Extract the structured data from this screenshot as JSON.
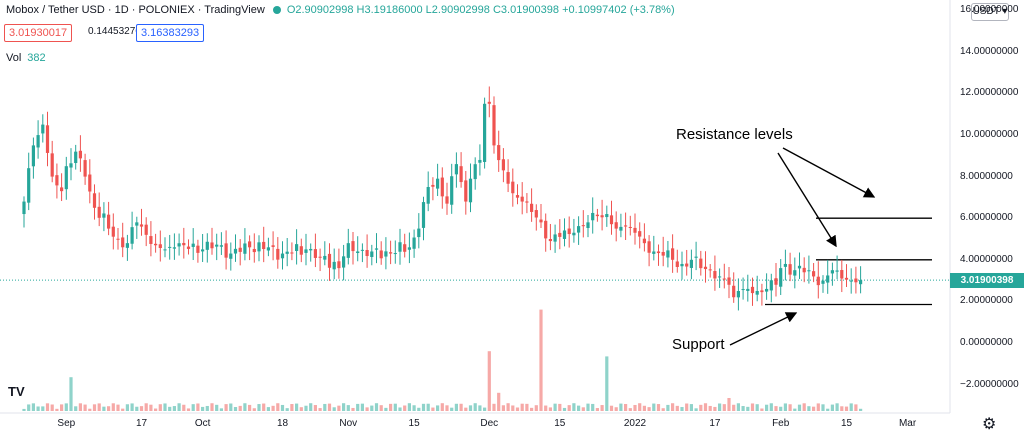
{
  "header": {
    "symbol": "Mobox / Tether USD · 1D · POLONIEX · TradingView",
    "ohlc_o": "O2.90902998",
    "ohlc_h": "H3.19186000",
    "ohlc_l": "L2.90902998",
    "ohlc_c": "C3.01900398",
    "ohlc_chg": "+0.10997402 (+3.78%)"
  },
  "price_boxes": {
    "bid": "3.01930017",
    "spread": "0.14453276",
    "ask": "3.16383293"
  },
  "volume": {
    "label": "Vol",
    "value": "382"
  },
  "currency": "USDT ▾",
  "last_price": "3.01900398",
  "colors": {
    "up": "#26a69a",
    "down": "#ef5350",
    "up_vol": "#8fd3ca",
    "down_vol": "#f6a9a7"
  },
  "annotations": {
    "resistance": "Resistance levels",
    "support": "Support"
  },
  "tv_logo": "TV",
  "settings_icon": "gear-icon",
  "chart_data": {
    "type": "candlestick",
    "ylim": [
      -3.2,
      16
    ],
    "y_ticks": [
      {
        "value": 16,
        "label": "16.00000000"
      },
      {
        "value": 14,
        "label": "14.00000000"
      },
      {
        "value": 12,
        "label": "12.00000000"
      },
      {
        "value": 10,
        "label": "10.00000000"
      },
      {
        "value": 8,
        "label": "8.00000000"
      },
      {
        "value": 6,
        "label": "6.00000000"
      },
      {
        "value": 4,
        "label": "4.00000000"
      },
      {
        "value": 2,
        "label": "2.00000000"
      },
      {
        "value": 0,
        "label": "0.00000000"
      },
      {
        "value": -2,
        "label": "−2.00000000"
      }
    ],
    "x_ticks": [
      {
        "day": 9,
        "label": "Sep"
      },
      {
        "day": 25,
        "label": "17"
      },
      {
        "day": 38,
        "label": "Oct"
      },
      {
        "day": 55,
        "label": "18"
      },
      {
        "day": 69,
        "label": "Nov"
      },
      {
        "day": 83,
        "label": "15"
      },
      {
        "day": 99,
        "label": "Dec"
      },
      {
        "day": 114,
        "label": "15"
      },
      {
        "day": 130,
        "label": "2022"
      },
      {
        "day": 147,
        "label": "17"
      },
      {
        "day": 161,
        "label": "Feb"
      },
      {
        "day": 175,
        "label": "15"
      },
      {
        "day": 188,
        "label": "Mar"
      }
    ],
    "levels": {
      "resistance": [
        6.0,
        4.0
      ],
      "support": [
        1.85
      ]
    },
    "close_anchors": [
      [
        0,
        6.8
      ],
      [
        2,
        9.5
      ],
      [
        4,
        10.5
      ],
      [
        6,
        8
      ],
      [
        8,
        7.3
      ],
      [
        9,
        8.5
      ],
      [
        11,
        9.2
      ],
      [
        13,
        8
      ],
      [
        15,
        6.5
      ],
      [
        18,
        5.5
      ],
      [
        20,
        5.0
      ],
      [
        22,
        4.8
      ],
      [
        24,
        5.8
      ],
      [
        26,
        5.2
      ],
      [
        28,
        4.7
      ],
      [
        30,
        4.5
      ],
      [
        32,
        4.6
      ],
      [
        34,
        4.7
      ],
      [
        38,
        4.5
      ],
      [
        42,
        4.7
      ],
      [
        44,
        4.3
      ],
      [
        48,
        4.6
      ],
      [
        52,
        4.6
      ],
      [
        55,
        4.3
      ],
      [
        60,
        4.5
      ],
      [
        63,
        4.1
      ],
      [
        66,
        3.9
      ],
      [
        67,
        3.6
      ],
      [
        69,
        4.8
      ],
      [
        71,
        4.4
      ],
      [
        74,
        4.4
      ],
      [
        78,
        4.3
      ],
      [
        82,
        4.6
      ],
      [
        84,
        5.5
      ],
      [
        86,
        7.5
      ],
      [
        88,
        7.9
      ],
      [
        90,
        6.7
      ],
      [
        92,
        8.6
      ],
      [
        94,
        6.8
      ],
      [
        95,
        7.9
      ],
      [
        97,
        8.8
      ],
      [
        98,
        11.5
      ],
      [
        99,
        11.5
      ],
      [
        100,
        9.5
      ],
      [
        102,
        8.3
      ],
      [
        104,
        7.2
      ],
      [
        106,
        6.8
      ],
      [
        108,
        6.3
      ],
      [
        110,
        5.8
      ],
      [
        112,
        4.9
      ],
      [
        114,
        5.1
      ],
      [
        117,
        5.3
      ],
      [
        120,
        5.8
      ],
      [
        122,
        6.1
      ],
      [
        124,
        6.2
      ],
      [
        126,
        5.5
      ],
      [
        128,
        5.6
      ],
      [
        130,
        5.3
      ],
      [
        132,
        4.8
      ],
      [
        134,
        4.4
      ],
      [
        136,
        4.2
      ],
      [
        138,
        4.0
      ],
      [
        140,
        3.8
      ],
      [
        142,
        4.0
      ],
      [
        144,
        3.6
      ],
      [
        146,
        3.5
      ],
      [
        148,
        3.2
      ],
      [
        150,
        2.8
      ],
      [
        151,
        2.2
      ],
      [
        152,
        2.5
      ],
      [
        154,
        2.6
      ],
      [
        156,
        2.5
      ],
      [
        158,
        2.6
      ],
      [
        160,
        2.8
      ],
      [
        161,
        3.6
      ],
      [
        162,
        3.8
      ],
      [
        164,
        3.5
      ],
      [
        166,
        3.4
      ],
      [
        168,
        3.2
      ],
      [
        170,
        3.0
      ],
      [
        172,
        3.5
      ],
      [
        174,
        3.1
      ],
      [
        176,
        3.0
      ],
      [
        178,
        3.02
      ]
    ],
    "volume_spikes": [
      [
        10,
        1.3
      ],
      [
        99,
        2.3
      ],
      [
        101,
        0.7
      ],
      [
        110,
        3.9
      ],
      [
        124,
        2.1
      ],
      [
        150,
        0.5
      ]
    ]
  }
}
